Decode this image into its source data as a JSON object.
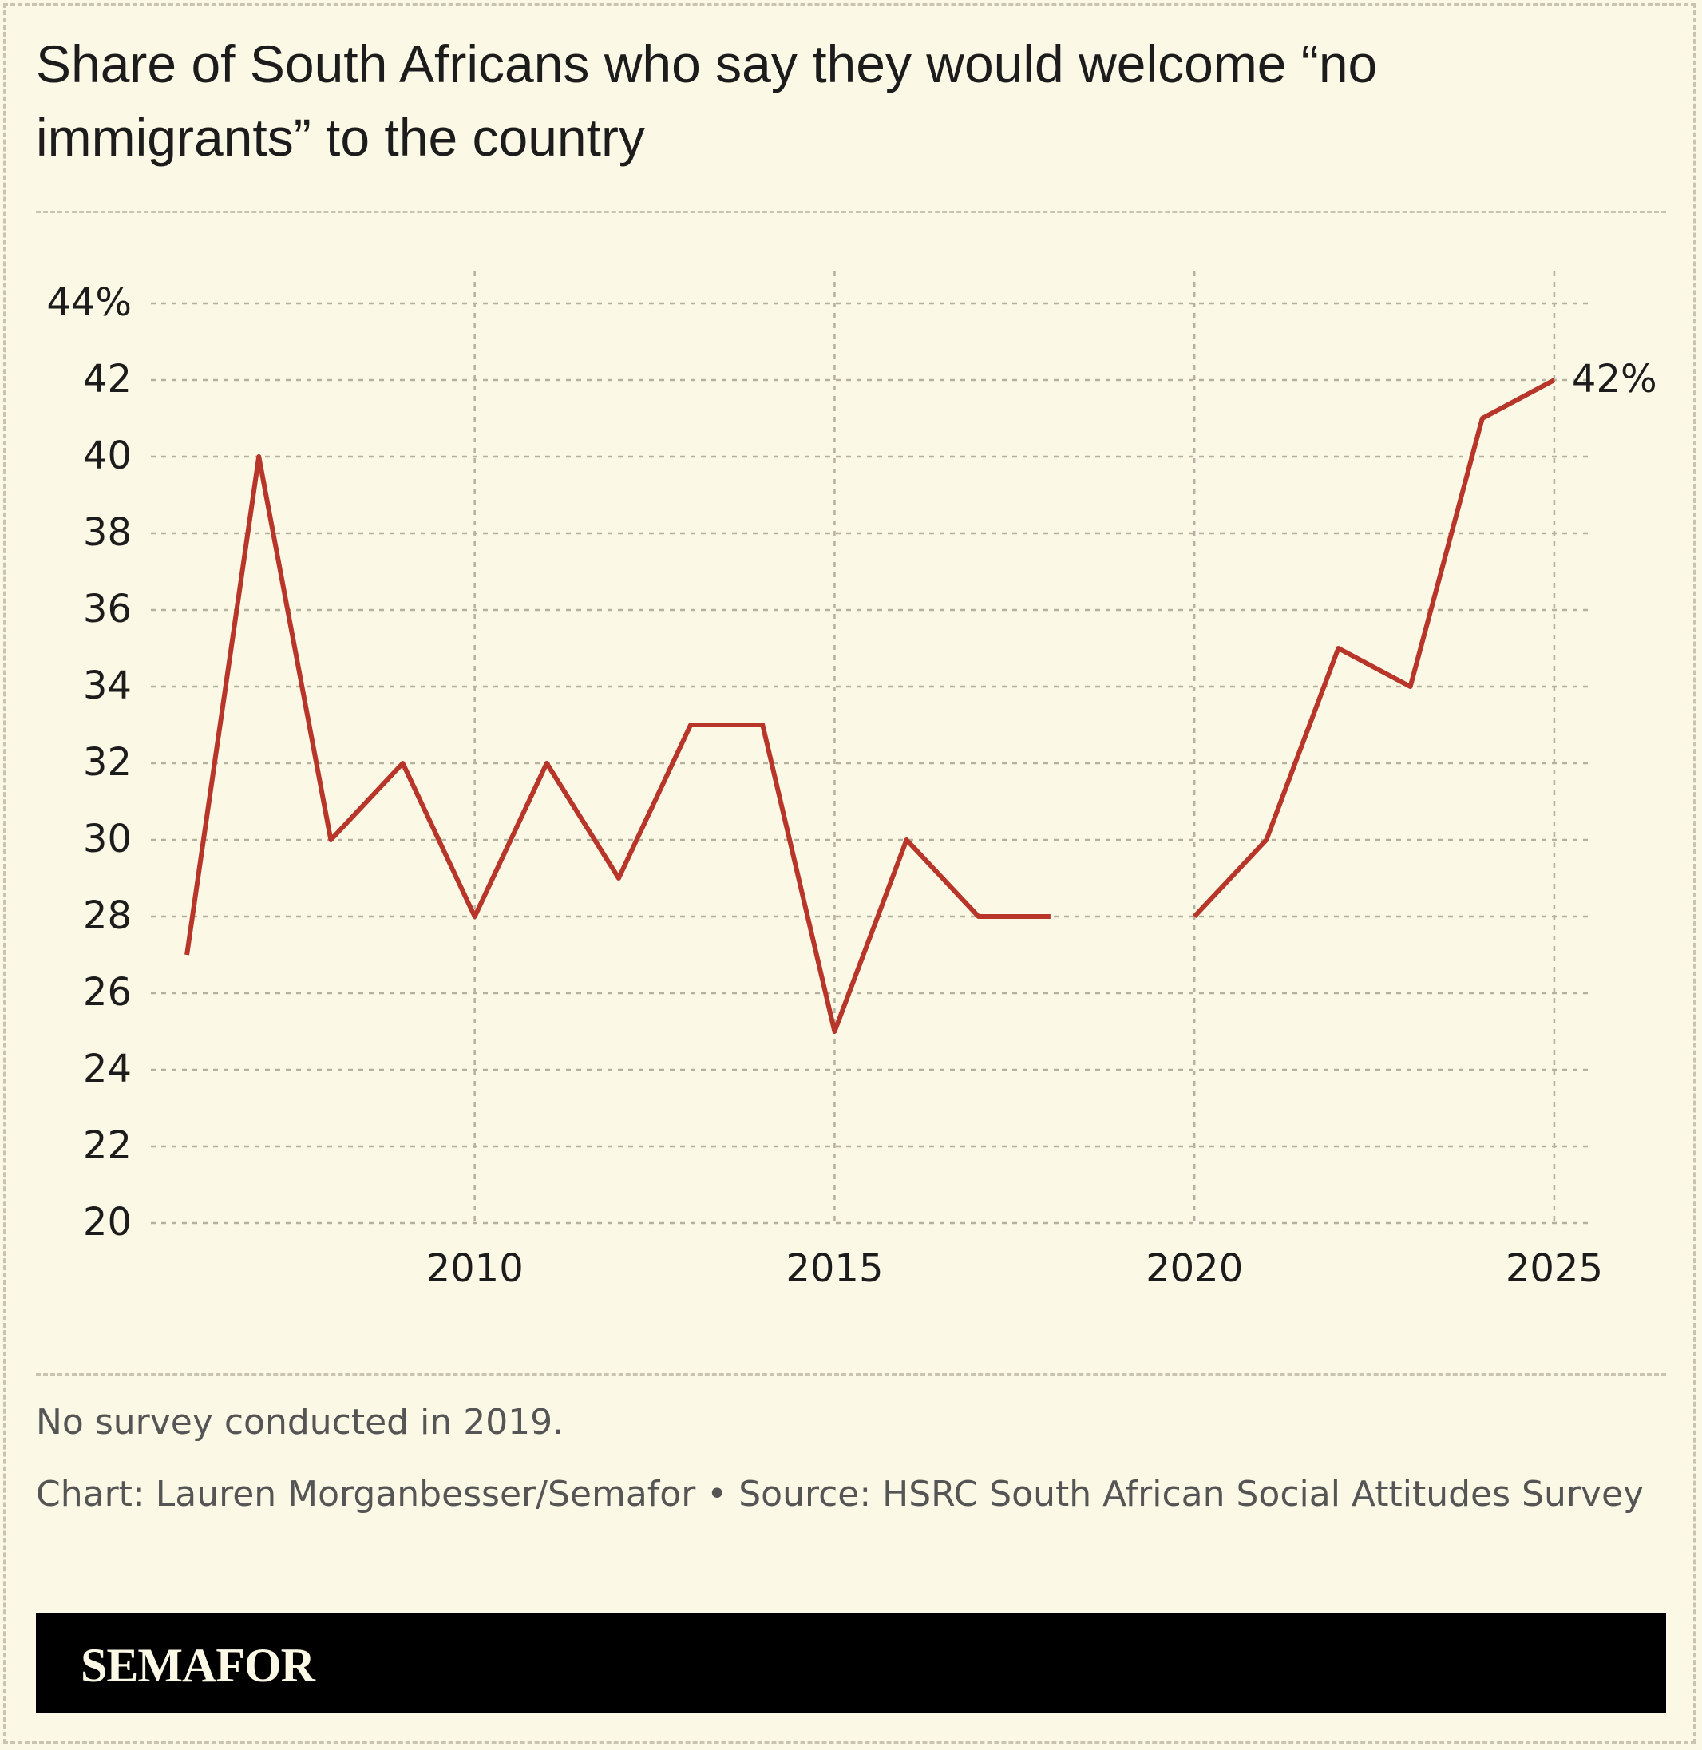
{
  "chart_data": {
    "type": "line",
    "title": "Share of South Africans who say they would welcome “no immigrants” to the country",
    "note": "No survey conducted in 2019.",
    "source": "Chart: Lauren Morganbesser/Semafor • Source: HSRC South African Social Attitudes Survey",
    "brand": "SEMAFOR",
    "x": [
      2006,
      2007,
      2008,
      2009,
      2010,
      2011,
      2012,
      2013,
      2014,
      2015,
      2016,
      2017,
      2018,
      2019,
      2020,
      2021,
      2022,
      2023,
      2024,
      2025
    ],
    "series": [
      {
        "color": "#b8352a",
        "values": [
          27,
          40,
          30,
          32,
          28,
          32,
          29,
          33,
          33,
          25,
          30,
          28,
          28,
          null,
          28,
          30,
          35,
          34,
          41,
          42
        ],
        "value_labels": [
          null,
          null,
          null,
          null,
          null,
          null,
          null,
          null,
          null,
          null,
          null,
          null,
          null,
          null,
          null,
          null,
          null,
          null,
          null,
          "42%"
        ]
      }
    ],
    "xlim": [
      2005.5,
      2025.5
    ],
    "xticks": [
      2010,
      2015,
      2020,
      2025
    ],
    "ylim": [
      20,
      44
    ],
    "yticks": [
      20,
      22,
      24,
      26,
      28,
      30,
      32,
      34,
      36,
      38,
      40,
      42,
      {
        "value": 44,
        "label": "44%"
      }
    ],
    "grid": true
  }
}
